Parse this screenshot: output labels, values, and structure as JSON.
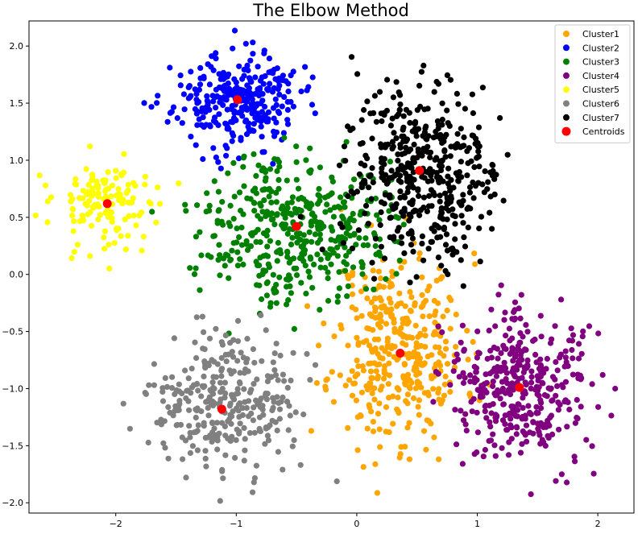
{
  "chart_data": {
    "type": "scatter",
    "title": "The Elbow Method",
    "xlabel": "",
    "ylabel": "",
    "xlim": [
      -2.72,
      2.3
    ],
    "ylim": [
      -2.09,
      2.22
    ],
    "xticks": [
      -2,
      -1,
      0,
      1,
      2
    ],
    "xtick_labels": [
      "−2",
      "−1",
      "0",
      "1",
      "2"
    ],
    "yticks": [
      -2.0,
      -1.5,
      -1.0,
      -0.5,
      0.0,
      0.5,
      1.0,
      1.5,
      2.0
    ],
    "ytick_labels": [
      "−2.0",
      "−1.5",
      "−1.0",
      "−0.5",
      "0.0",
      "0.5",
      "1.0",
      "1.5",
      "2.0"
    ],
    "grid": false,
    "legend_position": "top-right",
    "series": [
      {
        "name": "Cluster1",
        "color": "#FFA500",
        "center": [
          0.35,
          -0.65
        ],
        "spread": [
          0.27,
          0.42
        ],
        "n": 380,
        "seed": 11
      },
      {
        "name": "Cluster2",
        "color": "#0000FF",
        "center": [
          -1.0,
          1.52
        ],
        "spread": [
          0.26,
          0.2
        ],
        "n": 300,
        "seed": 23
      },
      {
        "name": "Cluster3",
        "color": "#008000",
        "center": [
          -0.52,
          0.42
        ],
        "spread": [
          0.38,
          0.32
        ],
        "n": 420,
        "seed": 37
      },
      {
        "name": "Cluster4",
        "color": "#800080",
        "center": [
          1.36,
          -0.98
        ],
        "spread": [
          0.3,
          0.33
        ],
        "n": 380,
        "seed": 41
      },
      {
        "name": "Cluster5",
        "color": "#FFFF00",
        "center": [
          -2.08,
          0.62
        ],
        "spread": [
          0.22,
          0.2
        ],
        "n": 140,
        "seed": 53
      },
      {
        "name": "Cluster6",
        "color": "#808080",
        "center": [
          -1.12,
          -1.17
        ],
        "spread": [
          0.28,
          0.3
        ],
        "n": 320,
        "seed": 67
      },
      {
        "name": "Cluster7",
        "color": "#000000",
        "center": [
          0.53,
          0.9
        ],
        "spread": [
          0.32,
          0.38
        ],
        "n": 460,
        "seed": 79
      }
    ],
    "centroids": {
      "name": "Centroids",
      "color": "#FF0000",
      "points": [
        [
          0.36,
          -0.69
        ],
        [
          -0.99,
          1.53
        ],
        [
          -0.5,
          0.42
        ],
        [
          1.35,
          -0.99
        ],
        [
          -2.07,
          0.62
        ],
        [
          -1.12,
          -1.18
        ],
        [
          0.52,
          0.91
        ]
      ]
    }
  }
}
